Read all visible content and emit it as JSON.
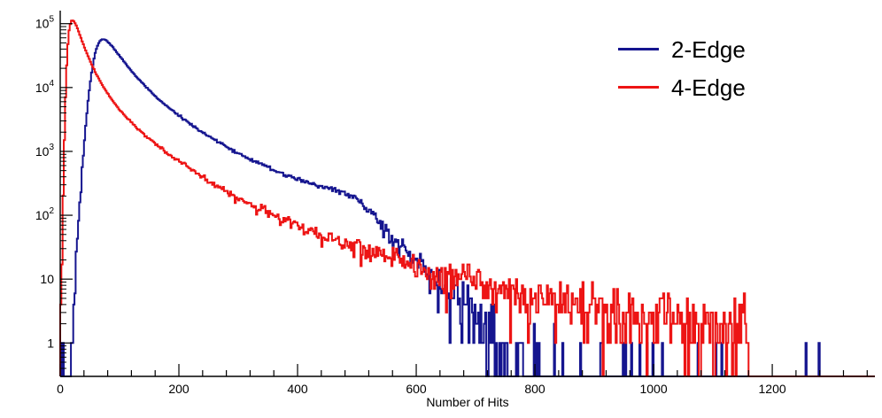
{
  "chart_data": {
    "type": "line",
    "title": "",
    "xlabel": "Number of Hits",
    "ylabel": "",
    "y_scale": "log",
    "x_range": [
      0,
      1373
    ],
    "y_range": [
      0.3,
      160000
    ],
    "x_major_ticks": [
      0,
      200,
      400,
      600,
      800,
      1000,
      1200
    ],
    "x_minor_step": 40,
    "y_major_ticks": [
      1,
      10,
      100,
      1000,
      10000,
      100000
    ],
    "grid": false,
    "bin_width": 2,
    "noise_seed": 20240527,
    "legend": {
      "position": "top-right",
      "entries": [
        {
          "label": "2-Edge",
          "color": "#15158f"
        },
        {
          "label": "4-Edge",
          "color": "#ed1414"
        }
      ]
    },
    "series": [
      {
        "name": "2-Edge",
        "color": "#15158f",
        "points": [
          [
            16,
            0.4
          ],
          [
            20,
            2
          ],
          [
            24,
            8
          ],
          [
            28,
            30
          ],
          [
            32,
            110
          ],
          [
            36,
            380
          ],
          [
            40,
            1200
          ],
          [
            44,
            3200
          ],
          [
            48,
            7500
          ],
          [
            52,
            15000
          ],
          [
            56,
            26000
          ],
          [
            60,
            38000
          ],
          [
            64,
            48000
          ],
          [
            68,
            55000
          ],
          [
            72,
            57500
          ],
          [
            76,
            56000
          ],
          [
            80,
            52500
          ],
          [
            86,
            46000
          ],
          [
            92,
            39000
          ],
          [
            98,
            33000
          ],
          [
            104,
            28000
          ],
          [
            112,
            22500
          ],
          [
            120,
            18200
          ],
          [
            130,
            14200
          ],
          [
            140,
            11300
          ],
          [
            150,
            9100
          ],
          [
            160,
            7400
          ],
          [
            170,
            6100
          ],
          [
            180,
            5100
          ],
          [
            190,
            4300
          ],
          [
            200,
            3650
          ],
          [
            212,
            3000
          ],
          [
            224,
            2500
          ],
          [
            236,
            2100
          ],
          [
            248,
            1780
          ],
          [
            260,
            1520
          ],
          [
            272,
            1310
          ],
          [
            284,
            1130
          ],
          [
            296,
            985
          ],
          [
            308,
            860
          ],
          [
            320,
            760
          ],
          [
            332,
            670
          ],
          [
            344,
            595
          ],
          [
            356,
            532
          ],
          [
            368,
            478
          ],
          [
            380,
            432
          ],
          [
            392,
            393
          ],
          [
            404,
            360
          ],
          [
            416,
            332
          ],
          [
            428,
            308
          ],
          [
            440,
            287
          ],
          [
            452,
            268
          ],
          [
            464,
            248
          ],
          [
            476,
            228
          ],
          [
            488,
            205
          ],
          [
            500,
            178
          ],
          [
            510,
            150
          ],
          [
            520,
            122
          ],
          [
            530,
            96
          ],
          [
            540,
            74
          ],
          [
            550,
            57
          ],
          [
            560,
            44
          ],
          [
            570,
            35
          ],
          [
            580,
            28
          ],
          [
            590,
            23
          ],
          [
            600,
            19
          ],
          [
            612,
            15
          ],
          [
            624,
            12
          ],
          [
            636,
            9.5
          ],
          [
            648,
            7.5
          ],
          [
            660,
            5.9
          ],
          [
            672,
            4.6
          ],
          [
            684,
            3.6
          ],
          [
            696,
            2.8
          ],
          [
            710,
            2.1
          ],
          [
            724,
            1.6
          ],
          [
            740,
            1.1
          ],
          [
            760,
            0.6
          ],
          [
            800,
            0.3
          ],
          [
            860,
            0.15
          ],
          [
            920,
            0.1
          ],
          [
            1000,
            0.09
          ],
          [
            1080,
            0.08
          ],
          [
            1160,
            0.05
          ],
          [
            1200,
            0.02
          ],
          [
            1373,
            0.02
          ]
        ]
      },
      {
        "name": "4-Edge",
        "color": "#ed1414",
        "points": [
          [
            2,
            5
          ],
          [
            6,
            700
          ],
          [
            10,
            15000
          ],
          [
            14,
            70000
          ],
          [
            18,
            110000
          ],
          [
            22,
            113000
          ],
          [
            26,
            98000
          ],
          [
            30,
            80000
          ],
          [
            34,
            63000
          ],
          [
            38,
            50000
          ],
          [
            44,
            36000
          ],
          [
            50,
            26500
          ],
          [
            56,
            20000
          ],
          [
            62,
            15500
          ],
          [
            68,
            12200
          ],
          [
            76,
            9200
          ],
          [
            84,
            7100
          ],
          [
            92,
            5600
          ],
          [
            100,
            4500
          ],
          [
            110,
            3550
          ],
          [
            120,
            2850
          ],
          [
            130,
            2320
          ],
          [
            140,
            1900
          ],
          [
            150,
            1580
          ],
          [
            160,
            1330
          ],
          [
            170,
            1120
          ],
          [
            180,
            955
          ],
          [
            190,
            820
          ],
          [
            200,
            705
          ],
          [
            214,
            570
          ],
          [
            228,
            465
          ],
          [
            242,
            385
          ],
          [
            256,
            320
          ],
          [
            270,
            268
          ],
          [
            284,
            227
          ],
          [
            298,
            192
          ],
          [
            312,
            164
          ],
          [
            326,
            141
          ],
          [
            340,
            122
          ],
          [
            354,
            106
          ],
          [
            368,
            92
          ],
          [
            382,
            81
          ],
          [
            396,
            71
          ],
          [
            410,
            62
          ],
          [
            424,
            55
          ],
          [
            438,
            49
          ],
          [
            452,
            43.5
          ],
          [
            466,
            39
          ],
          [
            480,
            35
          ],
          [
            494,
            31.5
          ],
          [
            508,
            28.5
          ],
          [
            522,
            26
          ],
          [
            536,
            23.5
          ],
          [
            550,
            21.5
          ],
          [
            564,
            19.5
          ],
          [
            578,
            18
          ],
          [
            592,
            16.5
          ],
          [
            606,
            15
          ],
          [
            620,
            13.5
          ],
          [
            634,
            12.3
          ],
          [
            648,
            11.2
          ],
          [
            662,
            10.2
          ],
          [
            676,
            9.4
          ],
          [
            690,
            8.7
          ],
          [
            704,
            8.1
          ],
          [
            718,
            7.5
          ],
          [
            732,
            7
          ],
          [
            746,
            6.5
          ],
          [
            760,
            6.1
          ],
          [
            776,
            5.7
          ],
          [
            792,
            5.3
          ],
          [
            808,
            5
          ],
          [
            824,
            4.7
          ],
          [
            840,
            4.4
          ],
          [
            856,
            4.1
          ],
          [
            872,
            3.9
          ],
          [
            888,
            3.7
          ],
          [
            904,
            3.5
          ],
          [
            920,
            3.3
          ],
          [
            936,
            3.1
          ],
          [
            952,
            3
          ],
          [
            968,
            2.85
          ],
          [
            984,
            2.7
          ],
          [
            1000,
            2.6
          ],
          [
            1020,
            2.45
          ],
          [
            1040,
            2.3
          ],
          [
            1060,
            2.2
          ],
          [
            1080,
            2.05
          ],
          [
            1100,
            1.95
          ],
          [
            1120,
            1.85
          ],
          [
            1140,
            1.75
          ],
          [
            1155,
            1.7
          ],
          [
            1158,
            1.5
          ],
          [
            1161,
            0.002
          ],
          [
            1373,
            0.001
          ]
        ]
      }
    ]
  }
}
